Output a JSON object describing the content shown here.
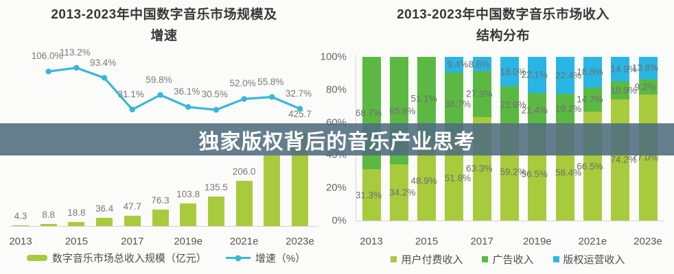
{
  "overlay": {
    "title": "独家版权背后的音乐产业思考",
    "band_color": "rgba(80,108,126,0.88)",
    "text_color": "#ffffff"
  },
  "chart_data": [
    {
      "type": "bar",
      "combo": "bar+line",
      "title": "2013-2023年中国数字音乐市场规模及增速",
      "title_lines": [
        "2013-2023年中国数字音乐市场规模及",
        "增速"
      ],
      "categories": [
        "2013",
        "2014",
        "2015",
        "2016",
        "2017",
        "2018",
        "2019e",
        "2020e",
        "2021e",
        "2022e",
        "2023e"
      ],
      "x_tick_labels": [
        "2013",
        "2015",
        "2017",
        "2019e",
        "2021e",
        "2023e"
      ],
      "grid": "off",
      "legend_position": "bottom",
      "bar_series": {
        "name": "数字音乐市场总收入规模（亿元）",
        "color": "#a7cb3c",
        "values": [
          4.3,
          8.8,
          18.8,
          36.4,
          47.7,
          76.3,
          103.8,
          135.5,
          206.0,
          320.9,
          425.7
        ],
        "labels": [
          "4.3",
          "8.8",
          "18.8",
          "36.4",
          "47.7",
          "76.3",
          "103.8",
          "135.5",
          "206.0",
          "",
          "425.7"
        ]
      },
      "line_series": {
        "name": "增速（%）",
        "color": "#36b7d9",
        "categories": [
          "2014",
          "2015",
          "2016",
          "2017",
          "2018",
          "2019e",
          "2020e",
          "2021e",
          "2022e",
          "2023e"
        ],
        "values": [
          106.0,
          113.2,
          93.4,
          31.1,
          59.8,
          36.1,
          30.5,
          52.0,
          55.8,
          32.7
        ],
        "labels": [
          "106.0%",
          "113.2%",
          "93.4%",
          "31.1%",
          "59.8%",
          "36.1%",
          "30.5%",
          "52.0%",
          "55.8%",
          "32.7%"
        ]
      }
    },
    {
      "type": "bar",
      "stacked": true,
      "title": "2013-2023年中国数字音乐市场收入结构分布",
      "title_lines": [
        "2013-2023年中国数字音乐市场收入",
        "结构分布"
      ],
      "categories": [
        "2013",
        "2014",
        "2015",
        "2016",
        "2017",
        "2018",
        "2019e",
        "2020e",
        "2021e",
        "2022e",
        "2023e"
      ],
      "x_tick_labels": [
        "2013",
        "2015",
        "2017",
        "2019e",
        "2021e",
        "2023e"
      ],
      "y_ticks": [
        "0%",
        "20%",
        "40%",
        "60%",
        "80%",
        "100%"
      ],
      "ylim": [
        0,
        100
      ],
      "grid": "off",
      "legend_position": "bottom",
      "series": [
        {
          "name": "用户付费收入",
          "color": "#a7cb3c",
          "values": [
            31.3,
            34.2,
            48.9,
            51.8,
            63.3,
            59.2,
            56.5,
            58.4,
            66.5,
            74.2,
            77.0
          ]
        },
        {
          "name": "广告收入",
          "color": "#5bb943",
          "values": [
            68.7,
            65.8,
            51.1,
            38.7,
            27.9,
            22.8,
            21.4,
            19.2,
            14.7,
            10.9,
            9.2
          ]
        },
        {
          "name": "版权运营收入",
          "color": "#29b6e4",
          "values": [
            0,
            0,
            0,
            9.4,
            8.8,
            18.0,
            22.1,
            22.4,
            18.8,
            14.9,
            13.8
          ]
        }
      ]
    }
  ]
}
